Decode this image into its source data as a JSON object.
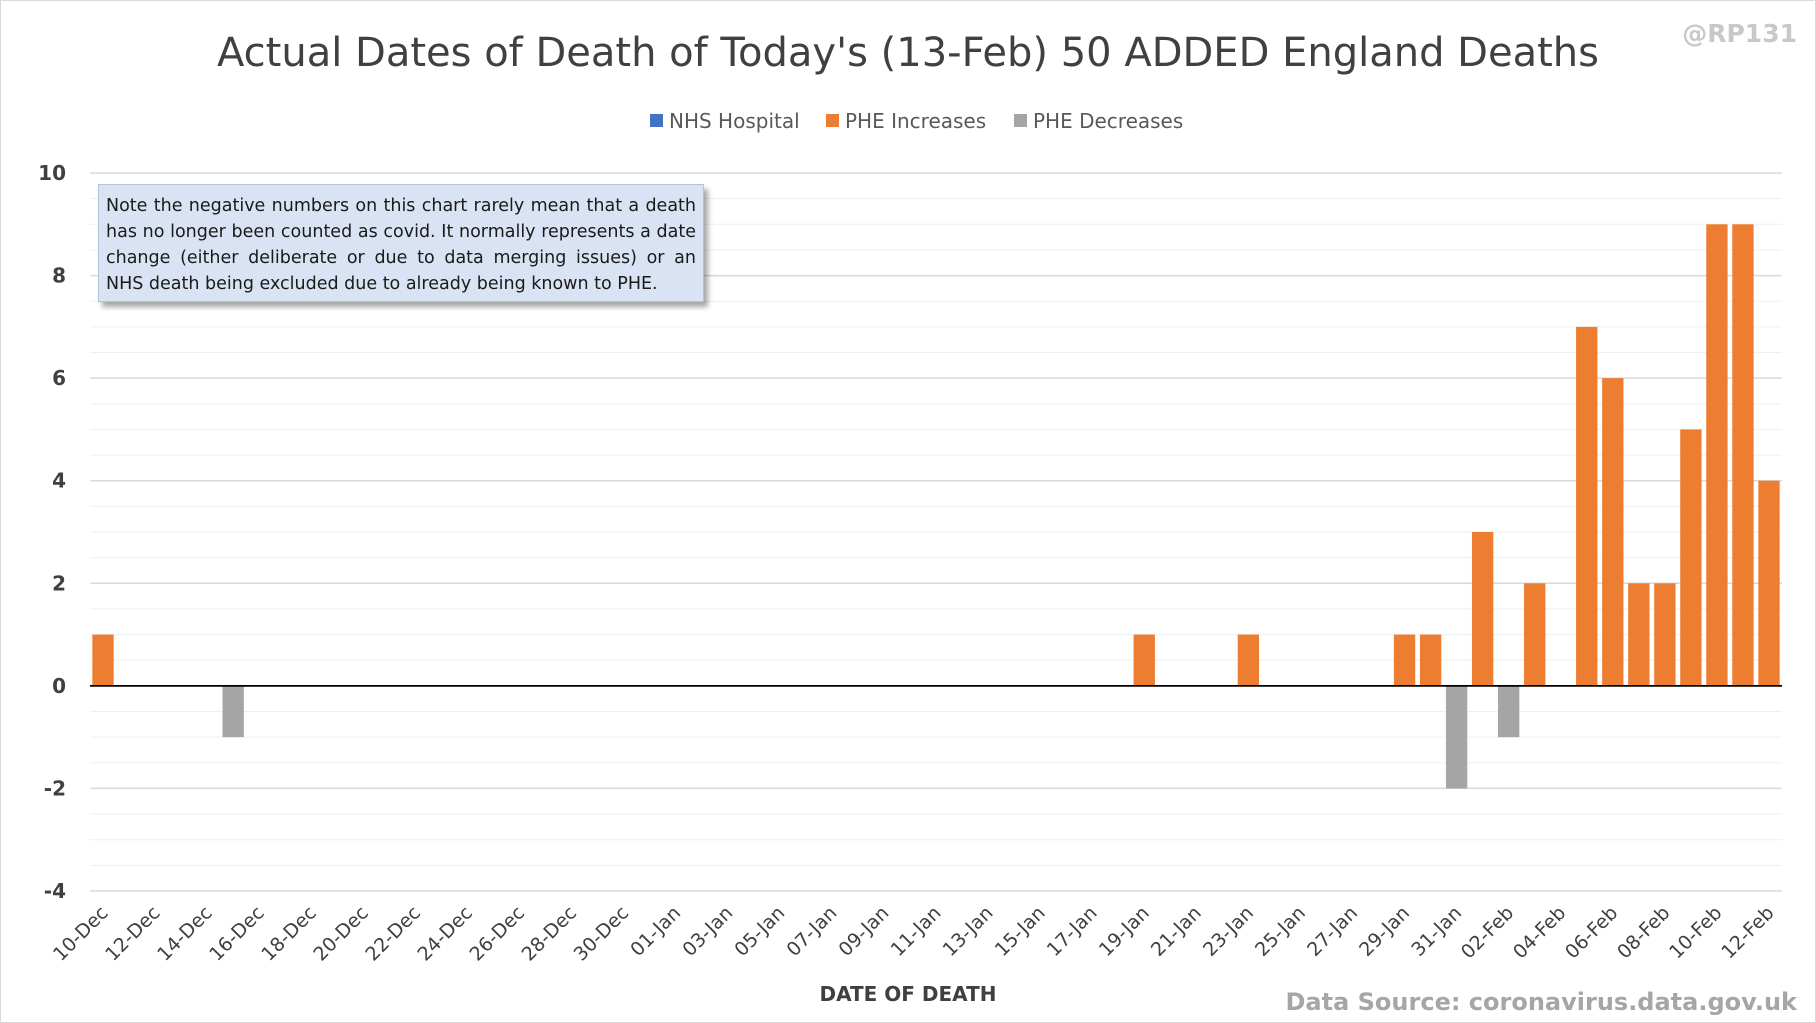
{
  "header": {
    "title": "Actual Dates of Death of Today's (13-Feb) 50 ADDED England Deaths",
    "handle": "@RP131"
  },
  "note": "Note the negative numbers on this chart rarely mean that a death has no longer been counted as covid. It normally represents a date change (either deliberate or due to data merging issues) or an NHS death being excluded due to already being known to PHE.",
  "source": "Data Source: coronavirus.data.gov.uk",
  "colors": {
    "nhs_hospital": "#4472c4",
    "phe_increases": "#ed7d31",
    "phe_decreases": "#a5a5a5",
    "gridline": "#d9d9d9",
    "zero_line": "#000000"
  },
  "chart_data": {
    "type": "bar",
    "stacked": true,
    "title": "Actual Dates of Death of Today's (13-Feb) 50 ADDED England Deaths",
    "xlabel": "DATE OF DEATH",
    "ylabel": "",
    "ylim": [
      -4,
      10
    ],
    "yticks": [
      -4,
      -2,
      0,
      2,
      4,
      6,
      8,
      10
    ],
    "grid": true,
    "legend_position": "top",
    "categories": [
      "10-Dec",
      "11-Dec",
      "12-Dec",
      "13-Dec",
      "14-Dec",
      "15-Dec",
      "16-Dec",
      "17-Dec",
      "18-Dec",
      "19-Dec",
      "20-Dec",
      "21-Dec",
      "22-Dec",
      "23-Dec",
      "24-Dec",
      "25-Dec",
      "26-Dec",
      "27-Dec",
      "28-Dec",
      "29-Dec",
      "30-Dec",
      "31-Dec",
      "01-Jan",
      "02-Jan",
      "03-Jan",
      "04-Jan",
      "05-Jan",
      "06-Jan",
      "07-Jan",
      "08-Jan",
      "09-Jan",
      "10-Jan",
      "11-Jan",
      "12-Jan",
      "13-Jan",
      "14-Jan",
      "15-Jan",
      "16-Jan",
      "17-Jan",
      "18-Jan",
      "19-Jan",
      "20-Jan",
      "21-Jan",
      "22-Jan",
      "23-Jan",
      "24-Jan",
      "25-Jan",
      "26-Jan",
      "27-Jan",
      "28-Jan",
      "29-Jan",
      "30-Jan",
      "31-Jan",
      "01-Feb",
      "02-Feb",
      "03-Feb",
      "04-Feb",
      "05-Feb",
      "06-Feb",
      "07-Feb",
      "08-Feb",
      "09-Feb",
      "10-Feb",
      "11-Feb",
      "12-Feb"
    ],
    "series": [
      {
        "name": "NHS Hospital",
        "color": "#4472c4",
        "values": [
          0,
          0,
          0,
          0,
          0,
          0,
          0,
          0,
          0,
          0,
          0,
          0,
          0,
          0,
          0,
          0,
          0,
          0,
          0,
          0,
          0,
          0,
          0,
          0,
          0,
          0,
          0,
          0,
          0,
          0,
          0,
          0,
          0,
          0,
          0,
          0,
          0,
          0,
          0,
          0,
          0,
          0,
          0,
          0,
          0,
          0,
          0,
          0,
          0,
          0,
          0,
          0,
          0,
          0,
          0,
          0,
          0,
          0,
          0,
          0,
          0,
          0,
          0,
          0,
          0
        ]
      },
      {
        "name": "PHE Increases",
        "color": "#ed7d31",
        "values": [
          1,
          0,
          0,
          0,
          0,
          0,
          0,
          0,
          0,
          0,
          0,
          0,
          0,
          0,
          0,
          0,
          0,
          0,
          0,
          0,
          0,
          0,
          0,
          0,
          0,
          0,
          0,
          0,
          0,
          0,
          0,
          0,
          0,
          0,
          0,
          0,
          0,
          0,
          0,
          0,
          1,
          0,
          0,
          0,
          1,
          0,
          0,
          0,
          0,
          0,
          1,
          1,
          0,
          3,
          0,
          2,
          0,
          7,
          6,
          2,
          2,
          5,
          9,
          9,
          4
        ]
      },
      {
        "name": "PHE Decreases",
        "color": "#a5a5a5",
        "values": [
          0,
          0,
          0,
          0,
          0,
          -1,
          0,
          0,
          0,
          0,
          0,
          0,
          0,
          0,
          0,
          0,
          0,
          0,
          0,
          0,
          0,
          0,
          0,
          0,
          0,
          0,
          0,
          0,
          0,
          0,
          0,
          0,
          0,
          0,
          0,
          0,
          0,
          0,
          0,
          0,
          0,
          0,
          0,
          0,
          0,
          0,
          0,
          0,
          0,
          0,
          0,
          0,
          -2,
          0,
          -1,
          0,
          0,
          0,
          0,
          0,
          0,
          0,
          0,
          0,
          0
        ]
      }
    ]
  }
}
